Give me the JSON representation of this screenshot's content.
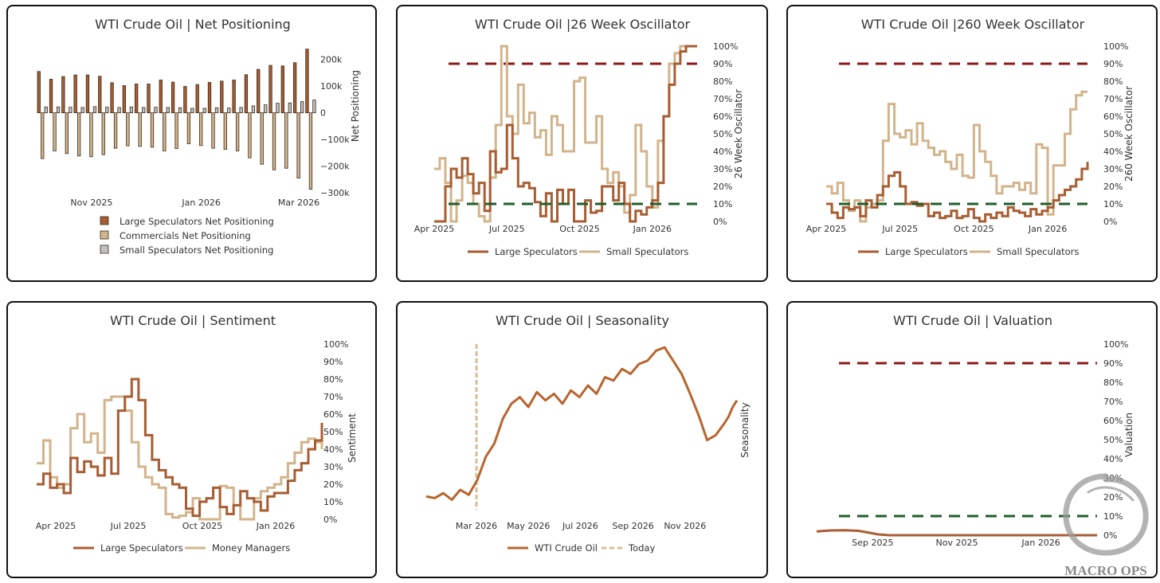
{
  "colors": {
    "large": "#A85D32",
    "commercial": "#D2B48C",
    "small": "#C0C0C0",
    "red_line": "#8B1A1A",
    "green_line": "#1F5E2A",
    "seasonality": "#B8652E",
    "today": "#D9BC95"
  },
  "chart_data": [
    {
      "id": "net_positioning",
      "type": "bar",
      "title": "WTI Crude Oil | Net Positioning",
      "ylabel": "Net Positioning",
      "ylim": [
        -300000,
        250000
      ],
      "y_ticks": [
        "200k",
        "100k",
        "0",
        "−100k",
        "−200k",
        "−300k"
      ],
      "y_tick_values": [
        200000,
        100000,
        0,
        -100000,
        -200000,
        -300000
      ],
      "x_ticks": [
        "Nov 2025",
        "Jan 2026",
        "Mar 2026"
      ],
      "x_tick_index": [
        4,
        13,
        21
      ],
      "series": [
        {
          "name": "Large Speculators Net Positioning",
          "values": [
            155000,
            126000,
            136000,
            142000,
            142000,
            137000,
            113000,
            102000,
            108000,
            108000,
            123000,
            115000,
            99000,
            106000,
            114000,
            119000,
            123000,
            143000,
            163000,
            178000,
            176000,
            188000,
            239000
          ]
        },
        {
          "name": "Commercials Net Positioning",
          "values": [
            -172000,
            -143000,
            -153000,
            -162000,
            -165000,
            -157000,
            -133000,
            -124000,
            -126000,
            -129000,
            -143000,
            -134000,
            -116000,
            -123000,
            -133000,
            -137000,
            -143000,
            -169000,
            -193000,
            -214000,
            -208000,
            -245000,
            -287000
          ]
        },
        {
          "name": "Small Speculators Net Positioning",
          "values": [
            22000,
            22000,
            21000,
            20000,
            23000,
            21000,
            20000,
            22000,
            20000,
            21000,
            20000,
            19000,
            17000,
            17000,
            19000,
            18000,
            20000,
            26000,
            30000,
            36000,
            37000,
            42000,
            48000
          ]
        }
      ]
    },
    {
      "id": "osc26",
      "type": "line",
      "title": "WTI Crude Oil |26 Week Oscillator",
      "ylabel": "26 Week Oscillator",
      "ylim": [
        0,
        100
      ],
      "y_ticks": [
        "100%",
        "90%",
        "80%",
        "70%",
        "60%",
        "50%",
        "40%",
        "30%",
        "20%",
        "10%",
        "0%"
      ],
      "x_ticks": [
        "Apr 2025",
        "Jul 2025",
        "Oct 2025",
        "Jan 2026"
      ],
      "x_tick_pos": [
        0,
        13,
        26,
        39
      ],
      "thresholds": [
        90,
        10
      ],
      "series": [
        {
          "name": "Large Speculators",
          "values": [
            0,
            0,
            20,
            30,
            25,
            36,
            27,
            16,
            22,
            6,
            40,
            28,
            30,
            55,
            36,
            20,
            22,
            19,
            11,
            3,
            16,
            0,
            18,
            10,
            18,
            0,
            0,
            12,
            5,
            6,
            20,
            20,
            12,
            22,
            10,
            0,
            6,
            4,
            8,
            12,
            22,
            60,
            78,
            90,
            97,
            100,
            100,
            100
          ]
        },
        {
          "name": "Small Speculators",
          "values": [
            30,
            36,
            22,
            0,
            12,
            26,
            22,
            10,
            3,
            0,
            25,
            55,
            100,
            60,
            50,
            78,
            56,
            62,
            48,
            52,
            38,
            60,
            55,
            40,
            40,
            80,
            82,
            45,
            45,
            60,
            30,
            22,
            28,
            20,
            5,
            15,
            55,
            40,
            20,
            8,
            46,
            60,
            90,
            96,
            100,
            100,
            100,
            100
          ]
        }
      ],
      "legend": [
        "Large Speculators",
        "Small Speculators"
      ]
    },
    {
      "id": "osc260",
      "type": "line",
      "title": "WTI Crude Oil |260 Week Oscillator",
      "ylabel": "260 Week Oscillator",
      "ylim": [
        0,
        100
      ],
      "y_ticks": [
        "100%",
        "90%",
        "80%",
        "70%",
        "60%",
        "50%",
        "40%",
        "30%",
        "20%",
        "10%",
        "0%"
      ],
      "x_ticks": [
        "Apr 2025",
        "Jul 2025",
        "Oct 2025",
        "Jan 2026"
      ],
      "x_tick_pos": [
        0,
        13,
        26,
        39
      ],
      "thresholds": [
        90,
        10
      ],
      "series": [
        {
          "name": "Large Speculators",
          "values": [
            10,
            5,
            2,
            8,
            7,
            8,
            3,
            12,
            8,
            15,
            20,
            26,
            28,
            20,
            10,
            11,
            9,
            10,
            3,
            5,
            2,
            3,
            6,
            2,
            3,
            7,
            2,
            0,
            4,
            2,
            5,
            3,
            8,
            6,
            5,
            3,
            7,
            4,
            6,
            8,
            12,
            15,
            18,
            20,
            24,
            30,
            34
          ]
        },
        {
          "name": "Small Speculators",
          "values": [
            20,
            16,
            22,
            12,
            6,
            12,
            0,
            8,
            10,
            12,
            46,
            67,
            50,
            48,
            52,
            44,
            56,
            46,
            42,
            38,
            40,
            34,
            30,
            38,
            26,
            25,
            55,
            40,
            34,
            26,
            16,
            20,
            20,
            22,
            18,
            22,
            16,
            44,
            42,
            4,
            32,
            32,
            50,
            64,
            72,
            74,
            74
          ]
        }
      ],
      "legend": [
        "Large Speculators",
        "Small Speculators"
      ]
    },
    {
      "id": "sentiment",
      "type": "line",
      "title": "WTI Crude Oil | Sentiment",
      "ylabel": "Sentiment",
      "ylim": [
        0,
        100
      ],
      "y_ticks": [
        "100%",
        "90%",
        "80%",
        "70%",
        "60%",
        "50%",
        "40%",
        "30%",
        "20%",
        "10%",
        "0%"
      ],
      "x_ticks": [
        "Apr 2025",
        "Jul 2025",
        "Oct 2025",
        "Jan 2026"
      ],
      "x_tick_pos": [
        0,
        13,
        26,
        39
      ],
      "series": [
        {
          "name": "Large Speculators",
          "values": [
            20,
            26,
            18,
            20,
            15,
            35,
            27,
            33,
            30,
            25,
            35,
            26,
            62,
            70,
            80,
            68,
            48,
            34,
            28,
            24,
            20,
            18,
            6,
            2,
            10,
            12,
            18,
            7,
            3,
            8,
            16,
            12,
            10,
            5,
            13,
            15,
            15,
            22,
            28,
            32,
            40,
            45,
            55
          ]
        },
        {
          "name": "Money Managers",
          "values": [
            32,
            45,
            24,
            18,
            20,
            52,
            60,
            44,
            49,
            38,
            68,
            70,
            70,
            62,
            44,
            30,
            24,
            20,
            18,
            3,
            1,
            2,
            4,
            12,
            0,
            0,
            0,
            19,
            18,
            8,
            0,
            0,
            12,
            16,
            18,
            20,
            24,
            32,
            38,
            44,
            46,
            44,
            40
          ]
        }
      ],
      "legend": [
        "Large Speculators",
        "Money Managers"
      ]
    },
    {
      "id": "seasonality",
      "type": "line",
      "title": "WTI Crude Oil | Seasonality",
      "ylabel": "Seasonality",
      "ylim": [
        0,
        100
      ],
      "x_ticks": [
        "Mar 2026",
        "May 2026",
        "Jul 2026",
        "Sep 2026",
        "Nov 2026"
      ],
      "x_tick_pos": [
        59,
        120,
        181,
        243,
        304
      ],
      "today_x": 59,
      "series": [
        {
          "name": "WTI Crude Oil",
          "x": [
            0,
            10,
            20,
            30,
            40,
            50,
            60,
            70,
            80,
            90,
            100,
            110,
            120,
            130,
            140,
            150,
            160,
            170,
            180,
            190,
            200,
            210,
            220,
            230,
            240,
            250,
            260,
            270,
            280,
            290,
            300,
            310,
            320,
            330,
            340,
            350,
            355,
            360,
            365
          ],
          "values": [
            8,
            7,
            10,
            6,
            12,
            9,
            18,
            32,
            40,
            55,
            64,
            68,
            62,
            71,
            66,
            70,
            64,
            72,
            68,
            75,
            70,
            80,
            78,
            85,
            82,
            88,
            90,
            96,
            98,
            90,
            82,
            70,
            57,
            42,
            45,
            52,
            56,
            62,
            66
          ]
        }
      ],
      "legend": [
        "WTI Crude Oil",
        "Today"
      ]
    },
    {
      "id": "valuation",
      "type": "line",
      "title": "WTI Crude Oil | Valuation",
      "ylabel": "Valuation",
      "ylim": [
        0,
        100
      ],
      "y_ticks": [
        "100%",
        "90%",
        "80%",
        "70%",
        "60%",
        "50%",
        "40%",
        "30%",
        "20%",
        "10%",
        "0%"
      ],
      "x_ticks": [
        "Sep 2025",
        "Nov 2025",
        "Jan 2026"
      ],
      "x_tick_pos": [
        20,
        50,
        80
      ],
      "thresholds": [
        90,
        10
      ],
      "series": [
        {
          "name": "Valuation",
          "x": [
            0,
            5,
            10,
            15,
            18,
            22,
            26,
            30,
            40,
            60,
            80,
            90,
            100
          ],
          "values": [
            2,
            2.5,
            2.6,
            2.3,
            1.5,
            0.4,
            0,
            0,
            0,
            0,
            0,
            0,
            0
          ]
        }
      ]
    }
  ],
  "watermark": "MACRO OPS"
}
